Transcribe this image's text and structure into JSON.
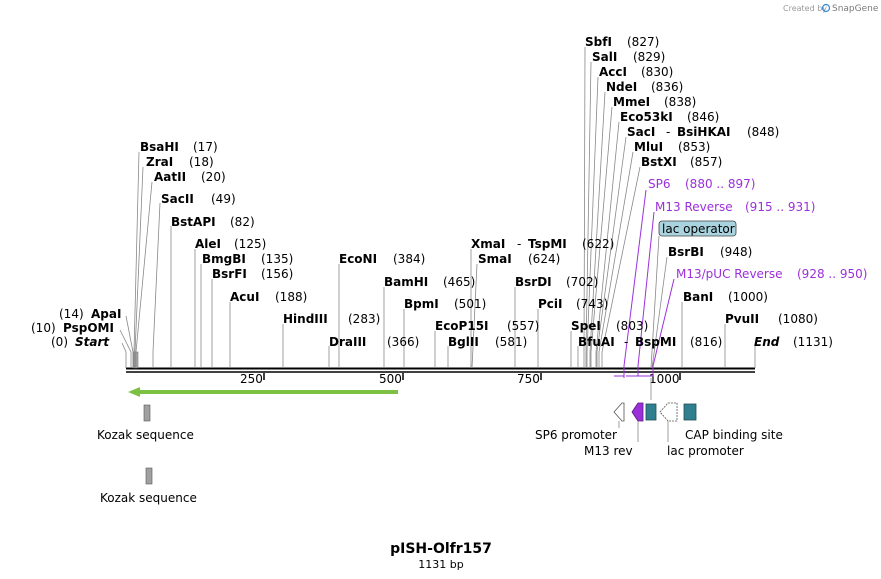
{
  "credit": "Created by",
  "brand": "SnapGene",
  "map": {
    "title": "pISH-Olfr157",
    "length_label": "1131 bp",
    "length_bp": 1131
  },
  "ticks": [
    "250",
    "500",
    "750",
    "1000"
  ],
  "enzymes": {
    "start": {
      "name": "Start",
      "pos": "(0)"
    },
    "PspOMI": {
      "name": "PspOMI",
      "pos": "(10)"
    },
    "ApaI": {
      "name": "ApaI",
      "pos": "(14)"
    },
    "BsaHI": {
      "name": "BsaHI",
      "pos": "(17)"
    },
    "ZraI": {
      "name": "ZraI",
      "pos": "(18)"
    },
    "AatII": {
      "name": "AatII",
      "pos": "(20)"
    },
    "SacII": {
      "name": "SacII",
      "pos": "(49)"
    },
    "BstAPI": {
      "name": "BstAPI",
      "pos": "(82)"
    },
    "AleI": {
      "name": "AleI",
      "pos": "(125)"
    },
    "BmgBI": {
      "name": "BmgBI",
      "pos": "(135)"
    },
    "BsrFI": {
      "name": "BsrFI",
      "pos": "(156)"
    },
    "AcuI": {
      "name": "AcuI",
      "pos": "(188)"
    },
    "HindIII": {
      "name": "HindIII",
      "pos": "(283)"
    },
    "DraIII": {
      "name": "DraIII",
      "pos": "(366)"
    },
    "EcoNI": {
      "name": "EcoNI",
      "pos": "(384)"
    },
    "BamHI": {
      "name": "BamHI",
      "pos": "(465)"
    },
    "BpmI": {
      "name": "BpmI",
      "pos": "(501)"
    },
    "EcoP15I": {
      "name": "EcoP15I",
      "pos": "(557)"
    },
    "BglII": {
      "name": "BglII",
      "pos": "(581)"
    },
    "XmaI": {
      "name": "XmaI",
      "sep": "-",
      "name2": "TspMI",
      "pos": "(622)"
    },
    "SmaI": {
      "name": "SmaI",
      "pos": "(624)"
    },
    "BsrDI": {
      "name": "BsrDI",
      "pos": "(702)"
    },
    "PciI": {
      "name": "PciI",
      "pos": "(743)"
    },
    "SpeI": {
      "name": "SpeI",
      "pos": "(803)"
    },
    "BfuAI": {
      "name": "BfuAI",
      "sep": "-",
      "name2": "BspMI",
      "pos": "(816)"
    },
    "SbfI": {
      "name": "SbfI",
      "pos": "(827)"
    },
    "SalI": {
      "name": "SalI",
      "pos": "(829)"
    },
    "AccI": {
      "name": "AccI",
      "pos": "(830)"
    },
    "NdeI": {
      "name": "NdeI",
      "pos": "(836)"
    },
    "MmeI": {
      "name": "MmeI",
      "pos": "(838)"
    },
    "Eco53kI": {
      "name": "Eco53kI",
      "pos": "(846)"
    },
    "SacI": {
      "name": "SacI",
      "sep": "-",
      "name2": "BsiHKAI",
      "pos": "(848)"
    },
    "MluI": {
      "name": "MluI",
      "pos": "(853)"
    },
    "BstXI": {
      "name": "BstXI",
      "pos": "(857)"
    },
    "BsrBI": {
      "name": "BsrBI",
      "pos": "(948)"
    },
    "BanI": {
      "name": "BanI",
      "pos": "(1000)"
    },
    "PvuII": {
      "name": "PvuII",
      "pos": "(1080)"
    },
    "end": {
      "name": "End",
      "pos": "(1131)"
    }
  },
  "primers": {
    "SP6": {
      "name": "SP6",
      "range": "(880 .. 897)"
    },
    "M13rev": {
      "name": "M13 Reverse",
      "range": "(915 .. 931)"
    },
    "M13pUC": {
      "name": "M13/pUC Reverse",
      "range": "(928 .. 950)"
    }
  },
  "features": {
    "lac_operator": "lac operator",
    "kozak1": "Kozak sequence",
    "kozak2": "Kozak sequence",
    "sp6_promoter": "SP6 promoter",
    "m13_rev": "M13 rev",
    "lac_promoter": "lac promoter",
    "cap_site": "CAP binding site"
  },
  "colors": {
    "primer": "#9b30d9",
    "orf": "#7cc242",
    "feature_box": "#2f7f8f",
    "operator_fill": "#a8d3df",
    "kozak_fill": "#a0a0a0"
  }
}
